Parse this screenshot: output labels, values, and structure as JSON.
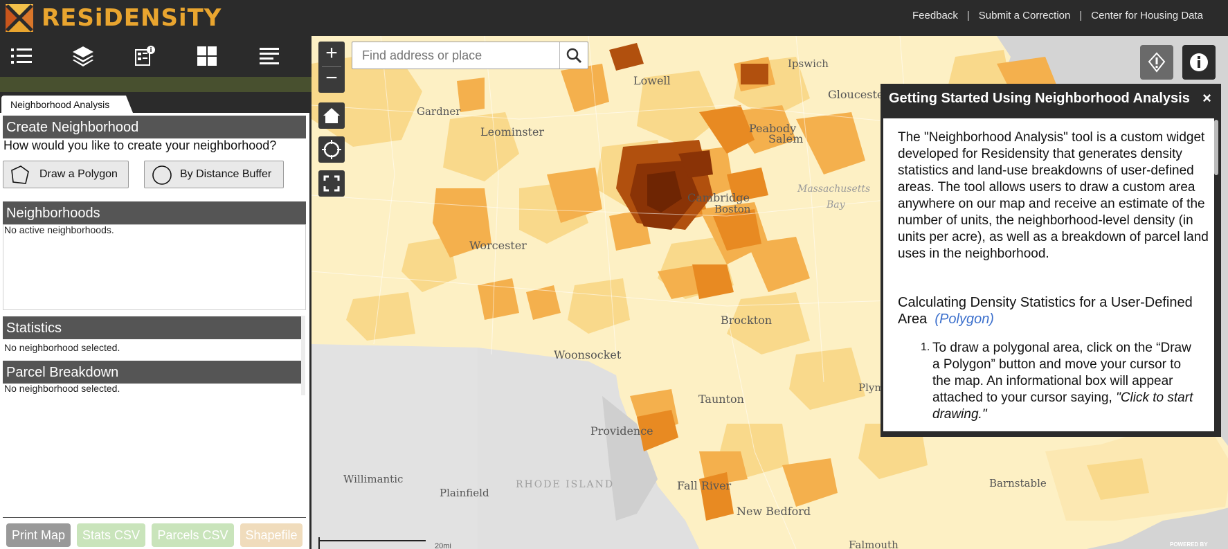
{
  "header": {
    "brand": "RESiDENSiTY",
    "links": [
      "Feedback",
      "Submit a Correction",
      "Center for Housing Data"
    ],
    "separator": "|"
  },
  "toolbar": {
    "icons": [
      "list-icon",
      "layers-icon",
      "legend-info-icon",
      "grid-icon",
      "menu-lines-icon"
    ]
  },
  "left_panel": {
    "tab_label": "Neighborhood Analysis",
    "create_heading": "Create Neighborhood",
    "create_question": "How would you like to create your neighborhood?",
    "draw_polygon_label": "Draw a Polygon",
    "distance_buffer_label": "By Distance Buffer",
    "neighborhoods_heading": "Neighborhoods",
    "neighborhoods_empty": "No active neighborhoods.",
    "statistics_heading": "Statistics",
    "statistics_empty": "No neighborhood selected.",
    "parcel_heading": "Parcel Breakdown",
    "parcel_empty": "No neighborhood selected."
  },
  "footer_buttons": {
    "print_map": "Print Map",
    "stats_csv": "Stats CSV",
    "parcels_csv": "Parcels CSV",
    "shapefile": "Shapefile"
  },
  "map": {
    "search_placeholder": "Find address or place",
    "zoom_in": "+",
    "zoom_out": "−",
    "labels": {
      "lowell": "Lowell",
      "ipswich": "Ipswich",
      "gloucester": "Gloucester",
      "gardner": "Gardner",
      "leominster": "Leominster",
      "peabody": "Peabody",
      "salem": "Salem",
      "cambridge": "Cambridge",
      "boston": "Boston",
      "mass_bay_1": "Massachusetts",
      "mass_bay_2": "Bay",
      "worcester": "Worcester",
      "brockton": "Brockton",
      "woonsocket": "Woonsocket",
      "plymouth": "Plymouth",
      "taunton": "Taunton",
      "providence": "Providence",
      "willimantic": "Willimantic",
      "plainfield": "Plainfield",
      "rhode_island": "RHODE ISLAND",
      "fall_river": "Fall River",
      "new_bedford": "New Bedford",
      "barnstable": "Barnstable",
      "falmouth": "Falmouth",
      "scale": "20mi",
      "powered": "POWERED BY"
    }
  },
  "info_panel": {
    "title": "Getting Started Using Neighborhood Analysis",
    "close": "×",
    "intro": "The \"Neighborhood Analysis\" tool is a custom widget developed for Residensity that generates density statistics and land-use breakdowns of user-defined areas. The tool allows users to draw a custom area anywhere on our map and receive an estimate of the number of units, the neighborhood-level density (in units per acre), as well as a breakdown of parcel land uses in the neighborhood.",
    "section_heading": "Calculating Density Statistics for a User-Defined Area",
    "section_tag": "(Polygon)",
    "step_number": "1.",
    "step_1": "To draw a polygonal area, click on the “Draw a Polygon” button and move your cursor to the map. An informational box will appear attached to your cursor saying,",
    "step_1_quote": "\"Click to start drawing.\""
  },
  "colors": {
    "header_bg": "#2b2b2b",
    "brand": "#e9a52f",
    "section_header": "#555555",
    "olive_bar": "#48502f",
    "density_low": "#fff4d2",
    "density_high": "#7a2a05"
  }
}
